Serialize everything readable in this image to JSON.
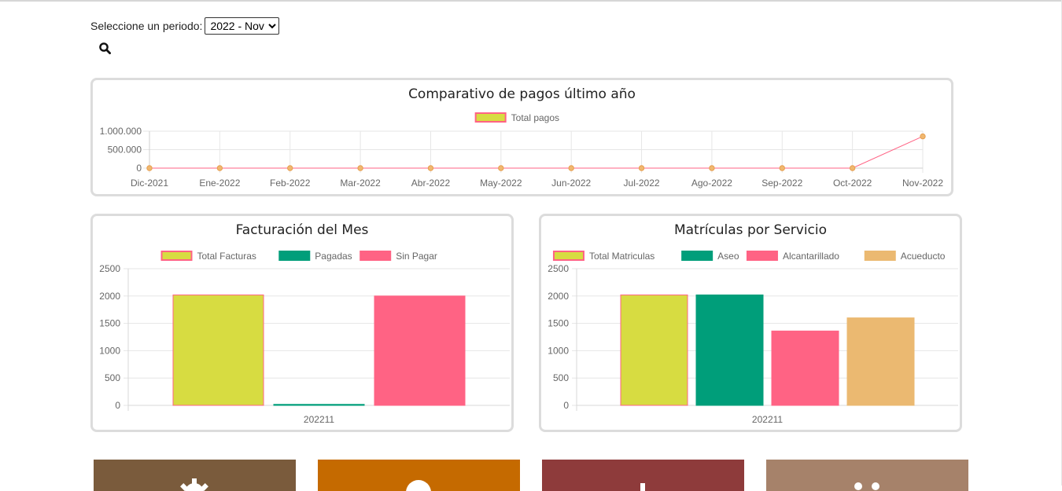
{
  "period": {
    "label": "Seleccione un periodo:",
    "selected": "2022 - Nov",
    "search_icon": "search-icon"
  },
  "payments_chart": {
    "title": "Comparativo de pagos último año",
    "chart_data": {
      "type": "line",
      "title": "Comparativo de pagos último año",
      "categories": [
        "Dic-2021",
        "Ene-2022",
        "Feb-2022",
        "Mar-2022",
        "Abr-2022",
        "May-2022",
        "Jun-2022",
        "Jul-2022",
        "Ago-2022",
        "Sep-2022",
        "Oct-2022",
        "Nov-2022"
      ],
      "series": [
        {
          "name": "Total pagos",
          "values": [
            0,
            0,
            0,
            0,
            0,
            0,
            0,
            0,
            0,
            0,
            0,
            860000
          ],
          "color": "#ff6384",
          "point_color": "#f0b86f",
          "legend_fill": "#d7dc41"
        }
      ],
      "yticks": [
        "0",
        "500.000",
        "1.000.000"
      ],
      "ylim": [
        0,
        1000000
      ],
      "grid": true,
      "legend": "top"
    }
  },
  "invoice_chart": {
    "title": "Facturación del Mes",
    "chart_data": {
      "type": "bar",
      "title": "Facturación del Mes",
      "categories": [
        "202211"
      ],
      "series": [
        {
          "name": "Total Facturas",
          "values": [
            2020
          ],
          "color": "#d7dc41",
          "border": "#ff6384"
        },
        {
          "name": "Pagadas",
          "values": [
            18
          ],
          "color": "#009e7a",
          "border": "#009e7a"
        },
        {
          "name": "Sin Pagar",
          "values": [
            2000
          ],
          "color": "#ff6384",
          "border": "#ff6384"
        }
      ],
      "yticks": [
        "0",
        "500",
        "1000",
        "1500",
        "2000",
        "2500"
      ],
      "ylim": [
        0,
        2500
      ],
      "grid": true,
      "legend": "top"
    }
  },
  "enrollment_chart": {
    "title": "Matrículas por Servicio",
    "chart_data": {
      "type": "bar",
      "title": "Matrículas por Servicio",
      "categories": [
        "202211"
      ],
      "series": [
        {
          "name": "Total Matriculas",
          "values": [
            2020
          ],
          "color": "#d7dc41",
          "border": "#ff6384"
        },
        {
          "name": "Aseo",
          "values": [
            2020
          ],
          "color": "#009e7a",
          "border": "#009e7a"
        },
        {
          "name": "Alcantarillado",
          "values": [
            1360
          ],
          "color": "#ff6384",
          "border": "#ff6384"
        },
        {
          "name": "Acueducto",
          "values": [
            1600
          ],
          "color": "#ebb971",
          "border": "#ebb971"
        }
      ],
      "yticks": [
        "0",
        "500",
        "1000",
        "1500",
        "2000",
        "2500"
      ],
      "ylim": [
        0,
        2500
      ],
      "grid": true,
      "legend": "top"
    }
  },
  "tiles": [
    {
      "color": "#7a5b3c",
      "icon": "gear-icon"
    },
    {
      "color": "#c56a00",
      "icon": "circle-icon"
    },
    {
      "color": "#8e3b3b",
      "icon": "pin-icon"
    },
    {
      "color": "#a6826a",
      "icon": "users-icon"
    }
  ]
}
